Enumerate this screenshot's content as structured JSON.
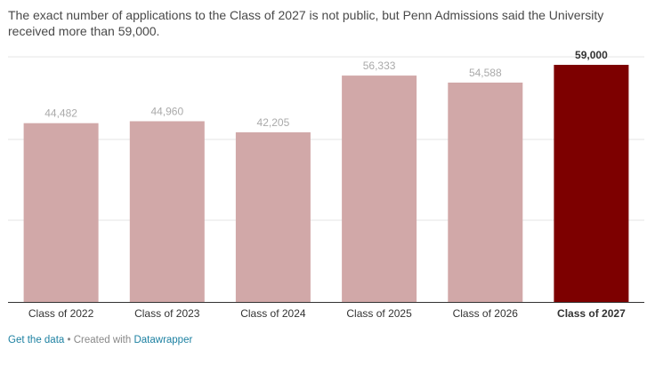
{
  "description": "The exact number of applications to the Class of 2027 is not public, but Penn Admissions said the University received more than 59,000.",
  "chart_data": {
    "type": "bar",
    "categories": [
      "Class of 2022",
      "Class of 2023",
      "Class of 2024",
      "Class of 2025",
      "Class of 2026",
      "Class of 2027"
    ],
    "values": [
      44482,
      44960,
      42205,
      56333,
      54588,
      59000
    ],
    "value_labels": [
      "44,482",
      "44,960",
      "42,205",
      "56,333",
      "54,588",
      "59,000"
    ],
    "highlight": [
      false,
      false,
      false,
      false,
      false,
      true
    ],
    "ylim": [
      0,
      59000
    ],
    "grid": true,
    "colors": {
      "bar": "#d1a8a8",
      "highlight": "#7d0000",
      "label": "#aaaaaa",
      "highlight_label": "#333333",
      "grid": "#e6e6e6",
      "axis": "#333333"
    }
  },
  "footer": {
    "get_data": "Get the data",
    "separator": " • Created with ",
    "datawrapper": "Datawrapper"
  }
}
